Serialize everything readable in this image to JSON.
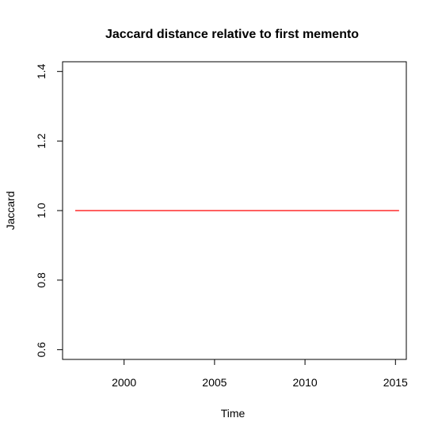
{
  "chart_data": {
    "type": "line",
    "title": "Jaccard distance relative to first memento",
    "xlabel": "Time",
    "ylabel": "Jaccard",
    "xlim": [
      1996.6,
      2015.6
    ],
    "ylim": [
      0.572,
      1.428
    ],
    "x_ticks": [
      2000,
      2005,
      2010,
      2015
    ],
    "x_tick_labels": [
      "2000",
      "2005",
      "2010",
      "2015"
    ],
    "y_ticks": [
      0.6,
      0.8,
      1.0,
      1.2,
      1.4
    ],
    "y_tick_labels": [
      "0.6",
      "0.8",
      "1.0",
      "1.2",
      "1.4"
    ],
    "grid": false,
    "series": [
      {
        "color": "#ff0000",
        "x": [
          1997.3,
          2015.2
        ],
        "y": [
          1.0,
          1.0
        ]
      }
    ]
  }
}
